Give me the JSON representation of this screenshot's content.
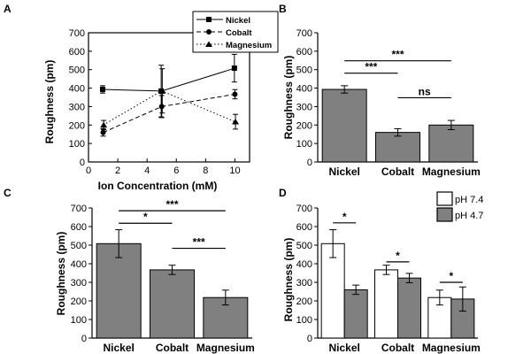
{
  "chart_data": [
    {
      "panel": "A",
      "type": "line",
      "xlabel": "Ion Concentration (mM)",
      "ylabel": "Roughness (pm)",
      "xlim": [
        0,
        11
      ],
      "ylim": [
        0,
        700
      ],
      "xticks": [
        0,
        2,
        4,
        6,
        8,
        10
      ],
      "yticks": [
        0,
        100,
        200,
        300,
        400,
        500,
        600,
        700
      ],
      "legend_position": "top-right",
      "series": [
        {
          "name": "Nickel",
          "marker": "square",
          "line": "solid",
          "x": [
            1,
            5,
            10
          ],
          "values": [
            393,
            384,
            508
          ],
          "errors": [
            20,
            140,
            75
          ]
        },
        {
          "name": "Cobalt",
          "marker": "circle",
          "line": "dashed",
          "x": [
            1,
            5,
            10
          ],
          "values": [
            160,
            300,
            367
          ],
          "errors": [
            20,
            60,
            25
          ]
        },
        {
          "name": "Magnesium",
          "marker": "triangle",
          "line": "dotted",
          "x": [
            1,
            5,
            10
          ],
          "values": [
            200,
            385,
            218
          ],
          "errors": [
            25,
            120,
            40
          ]
        }
      ]
    },
    {
      "panel": "B",
      "type": "bar",
      "ylabel": "Roughness (pm)",
      "ylim": [
        0,
        700
      ],
      "yticks": [
        0,
        100,
        200,
        300,
        400,
        500,
        600,
        700
      ],
      "categories": [
        "Nickel",
        "Cobalt",
        "Magnesium"
      ],
      "values": [
        393,
        160,
        200
      ],
      "errors": [
        20,
        20,
        25
      ],
      "significance": [
        {
          "from": 0,
          "to": 2,
          "label": "***",
          "level": 548
        },
        {
          "from": 0,
          "to": 1,
          "label": "***",
          "level": 481
        },
        {
          "from": 1,
          "to": 2,
          "label": "ns",
          "level": 348
        }
      ]
    },
    {
      "panel": "C",
      "type": "bar",
      "ylabel": "Roughness (pm)",
      "ylim": [
        0,
        700
      ],
      "yticks": [
        0,
        100,
        200,
        300,
        400,
        500,
        600,
        700
      ],
      "categories": [
        "Nickel",
        "Cobalt",
        "Magnesium"
      ],
      "values": [
        508,
        367,
        218
      ],
      "errors": [
        75,
        25,
        40
      ],
      "significance": [
        {
          "from": 0,
          "to": 2,
          "label": "***",
          "level": 685
        },
        {
          "from": 0,
          "to": 1,
          "label": "*",
          "level": 618
        },
        {
          "from": 1,
          "to": 2,
          "label": "***",
          "level": 483
        }
      ]
    },
    {
      "panel": "D",
      "type": "bar",
      "ylabel": "Roughness (pm)",
      "ylim": [
        0,
        700
      ],
      "yticks": [
        0,
        100,
        200,
        300,
        400,
        500,
        600,
        700
      ],
      "categories": [
        "Nickel",
        "Cobalt",
        "Magnesium"
      ],
      "legend_position": "top-right",
      "series": [
        {
          "name": "pH 7.4",
          "color": "#ffffff",
          "values": [
            508,
            367,
            218
          ],
          "errors": [
            75,
            25,
            40
          ]
        },
        {
          "name": "pH 4.7",
          "color": "#808080",
          "values": [
            260,
            323,
            210
          ],
          "errors": [
            25,
            25,
            65
          ]
        }
      ],
      "significance": [
        {
          "category": 0,
          "label": "*",
          "level": 620
        },
        {
          "category": 1,
          "label": "*",
          "level": 410
        },
        {
          "category": 2,
          "label": "*",
          "level": 300
        }
      ]
    }
  ]
}
